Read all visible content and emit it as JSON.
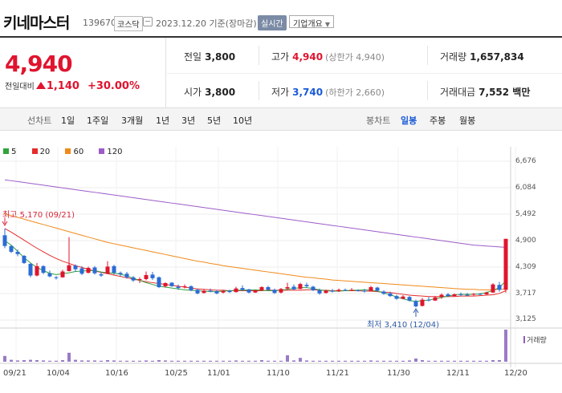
{
  "header": {
    "stock_name": "키네마스터",
    "stock_code": "139670",
    "market": "코스닥",
    "date": "2023.12.20 기준(장마감)",
    "realtime_label": "실시간",
    "company_label": "기업개요"
  },
  "price": {
    "current": "4,940",
    "change_label": "전일대비",
    "change_amount": "1,140",
    "change_pct": "+30.00%",
    "accent_color": "#e0142e",
    "direction": "up"
  },
  "stats": {
    "prev_close_label": "전일",
    "prev_close": "3,800",
    "high_label": "고가",
    "high": "4,940",
    "upper_limit": "(상한가 4,940)",
    "volume_label": "거래량",
    "volume": "1,657,834",
    "open_label": "시가",
    "open": "3,800",
    "low_label": "저가",
    "low": "3,740",
    "lower_limit": "(하한가 2,660)",
    "trade_value_label": "거래대금",
    "trade_value": "7,552 백만"
  },
  "period": {
    "title": "선차트",
    "items": [
      "1일",
      "1주일",
      "3개월",
      "1년",
      "3년",
      "5년",
      "10년"
    ],
    "candle_title": "봉차트",
    "candle_items": [
      "일봉",
      "주봉",
      "월봉"
    ],
    "candle_active": "일봉"
  },
  "legend": [
    {
      "label": "5",
      "color": "#2fa43a"
    },
    {
      "label": "20",
      "color": "#e52b2b"
    },
    {
      "label": "60",
      "color": "#f08a1a"
    },
    {
      "label": "120",
      "color": "#9c5cc9"
    }
  ],
  "annotations": {
    "high": "최고 5,170 (09/21)",
    "low": "최저 3,410 (12/04)"
  },
  "volume_label": "거래량",
  "chart_data": {
    "type": "candlestick",
    "y_ticks": [
      "6,676",
      "6,084",
      "5,492",
      "4,900",
      "4,309",
      "3,717",
      "3,125"
    ],
    "ylim": [
      3125,
      6676
    ],
    "x_ticks": [
      "09/21",
      "10/04",
      "10/16",
      "10/25",
      "11/01",
      "11/10",
      "11/21",
      "11/30",
      "12/11",
      "12/20"
    ],
    "up_color": "#e0142e",
    "down_color": "#2a6bd6",
    "candles": [
      [
        5020,
        5170,
        4730,
        4780
      ],
      [
        4780,
        4800,
        4620,
        4650
      ],
      [
        4650,
        4700,
        4550,
        4600
      ],
      [
        4560,
        4580,
        4380,
        4400
      ],
      [
        4380,
        4400,
        4080,
        4120
      ],
      [
        4120,
        4400,
        4100,
        4330
      ],
      [
        4330,
        4350,
        4150,
        4180
      ],
      [
        4170,
        4230,
        4080,
        4100
      ],
      [
        4080,
        4110,
        4030,
        4070
      ],
      [
        4080,
        4250,
        4070,
        4210
      ],
      [
        4220,
        4980,
        4210,
        4350
      ],
      [
        4340,
        4370,
        4200,
        4260
      ],
      [
        4280,
        4330,
        4130,
        4160
      ],
      [
        4180,
        4320,
        4170,
        4290
      ],
      [
        4300,
        4330,
        4140,
        4170
      ],
      [
        4150,
        4190,
        4090,
        4120
      ],
      [
        4160,
        4440,
        4150,
        4320
      ],
      [
        4330,
        4360,
        4140,
        4180
      ],
      [
        4180,
        4210,
        4100,
        4150
      ],
      [
        4160,
        4200,
        4050,
        4080
      ],
      [
        4080,
        4110,
        3980,
        4010
      ],
      [
        4020,
        4080,
        3950,
        4040
      ],
      [
        4040,
        4210,
        4010,
        4130
      ],
      [
        4140,
        4200,
        4020,
        4060
      ],
      [
        4080,
        4100,
        3840,
        3860
      ],
      [
        3880,
        3970,
        3850,
        3950
      ],
      [
        3960,
        3970,
        3870,
        3880
      ],
      [
        3870,
        3920,
        3800,
        3840
      ],
      [
        3860,
        3920,
        3830,
        3880
      ],
      [
        3880,
        3900,
        3770,
        3790
      ],
      [
        3800,
        3830,
        3700,
        3720
      ],
      [
        3730,
        3810,
        3720,
        3780
      ],
      [
        3780,
        3830,
        3750,
        3760
      ],
      [
        3770,
        3800,
        3700,
        3720
      ],
      [
        3740,
        3800,
        3720,
        3770
      ],
      [
        3780,
        3800,
        3730,
        3750
      ],
      [
        3750,
        3870,
        3740,
        3830
      ],
      [
        3840,
        3900,
        3780,
        3800
      ],
      [
        3810,
        3820,
        3720,
        3740
      ],
      [
        3740,
        3800,
        3730,
        3790
      ],
      [
        3790,
        3880,
        3780,
        3860
      ],
      [
        3860,
        3890,
        3780,
        3800
      ],
      [
        3800,
        3830,
        3710,
        3730
      ],
      [
        3740,
        3840,
        3720,
        3820
      ],
      [
        3830,
        3960,
        3800,
        3860
      ],
      [
        3870,
        3920,
        3800,
        3810
      ],
      [
        3820,
        3960,
        3810,
        3930
      ],
      [
        3910,
        3960,
        3840,
        3880
      ],
      [
        3870,
        3890,
        3770,
        3790
      ],
      [
        3790,
        3830,
        3690,
        3720
      ],
      [
        3730,
        3800,
        3720,
        3780
      ],
      [
        3780,
        3820,
        3740,
        3760
      ],
      [
        3770,
        3830,
        3750,
        3800
      ],
      [
        3800,
        3830,
        3770,
        3790
      ],
      [
        3800,
        3840,
        3780,
        3800
      ],
      [
        3790,
        3810,
        3760,
        3780
      ],
      [
        3780,
        3820,
        3740,
        3760
      ],
      [
        3770,
        3890,
        3760,
        3860
      ],
      [
        3850,
        3870,
        3760,
        3780
      ],
      [
        3760,
        3790,
        3690,
        3710
      ],
      [
        3720,
        3760,
        3640,
        3660
      ],
      [
        3660,
        3690,
        3580,
        3600
      ],
      [
        3600,
        3680,
        3590,
        3650
      ],
      [
        3640,
        3660,
        3540,
        3560
      ],
      [
        3550,
        3580,
        3410,
        3430
      ],
      [
        3440,
        3620,
        3430,
        3580
      ],
      [
        3580,
        3640,
        3540,
        3560
      ],
      [
        3560,
        3660,
        3550,
        3630
      ],
      [
        3640,
        3720,
        3600,
        3690
      ],
      [
        3700,
        3730,
        3640,
        3660
      ],
      [
        3660,
        3720,
        3650,
        3700
      ],
      [
        3700,
        3740,
        3660,
        3690
      ],
      [
        3690,
        3730,
        3660,
        3680
      ],
      [
        3690,
        3730,
        3670,
        3710
      ],
      [
        3710,
        3730,
        3680,
        3700
      ],
      [
        3700,
        3760,
        3690,
        3740
      ],
      [
        3740,
        3950,
        3730,
        3920
      ],
      [
        3910,
        3980,
        3760,
        3800
      ],
      [
        3800,
        4940,
        3740,
        4940
      ]
    ],
    "ma5": [
      4900,
      4800,
      4660,
      4520,
      4400,
      4300,
      4230,
      4170,
      4140,
      4160,
      4180,
      4210,
      4220,
      4230,
      4230,
      4200,
      4180,
      4170,
      4150,
      4110,
      4060,
      4010,
      3960,
      3920,
      3880,
      3860,
      3840,
      3820,
      3800,
      3790,
      3780,
      3770,
      3760,
      3760,
      3770,
      3780,
      3790,
      3790,
      3800,
      3800,
      3790,
      3780,
      3780,
      3790,
      3810,
      3830,
      3850,
      3850,
      3830,
      3800,
      3780,
      3770,
      3770,
      3780,
      3790,
      3790,
      3800,
      3790,
      3770,
      3730,
      3690,
      3640,
      3600,
      3560,
      3540,
      3560,
      3570,
      3600,
      3630,
      3660,
      3690,
      3700,
      3700,
      3700,
      3710,
      3740,
      3790,
      3850,
      4000
    ],
    "ma20": [
      5170,
      5090,
      5000,
      4910,
      4820,
      4730,
      4650,
      4570,
      4500,
      4440,
      4390,
      4340,
      4300,
      4260,
      4220,
      4190,
      4160,
      4130,
      4100,
      4070,
      4040,
      4010,
      3980,
      3960,
      3940,
      3920,
      3900,
      3880,
      3860,
      3840,
      3820,
      3810,
      3800,
      3790,
      3790,
      3780,
      3780,
      3780,
      3780,
      3780,
      3780,
      3790,
      3790,
      3790,
      3790,
      3790,
      3790,
      3800,
      3800,
      3790,
      3790,
      3780,
      3780,
      3780,
      3780,
      3780,
      3770,
      3770,
      3760,
      3750,
      3740,
      3720,
      3700,
      3680,
      3670,
      3660,
      3650,
      3650,
      3650,
      3650,
      3650,
      3660,
      3660,
      3660,
      3670,
      3680,
      3690,
      3720,
      3780
    ],
    "ma60": [
      5500,
      5460,
      5420,
      5380,
      5340,
      5300,
      5260,
      5220,
      5180,
      5140,
      5100,
      5060,
      5020,
      4980,
      4940,
      4900,
      4860,
      4830,
      4800,
      4770,
      4740,
      4710,
      4680,
      4650,
      4620,
      4590,
      4560,
      4530,
      4500,
      4470,
      4440,
      4420,
      4390,
      4370,
      4340,
      4320,
      4300,
      4280,
      4260,
      4240,
      4220,
      4200,
      4180,
      4160,
      4140,
      4120,
      4100,
      4080,
      4070,
      4050,
      4040,
      4020,
      4010,
      4000,
      3990,
      3980,
      3970,
      3960,
      3950,
      3940,
      3930,
      3920,
      3910,
      3900,
      3890,
      3880,
      3870,
      3860,
      3850,
      3840,
      3830,
      3820,
      3810,
      3810,
      3800,
      3800,
      3800,
      3810,
      3820
    ],
    "ma120": [
      6260,
      6240,
      6220,
      6200,
      6180,
      6160,
      6140,
      6120,
      6100,
      6080,
      6060,
      6040,
      6020,
      6000,
      5980,
      5960,
      5940,
      5920,
      5900,
      5880,
      5860,
      5840,
      5820,
      5800,
      5780,
      5760,
      5740,
      5720,
      5700,
      5680,
      5660,
      5640,
      5620,
      5600,
      5580,
      5560,
      5540,
      5520,
      5500,
      5480,
      5460,
      5440,
      5420,
      5400,
      5380,
      5360,
      5340,
      5320,
      5300,
      5280,
      5260,
      5240,
      5220,
      5200,
      5180,
      5160,
      5140,
      5120,
      5100,
      5080,
      5060,
      5040,
      5020,
      5000,
      4980,
      4960,
      4940,
      4920,
      4900,
      4880,
      4860,
      4840,
      4820,
      4800,
      4790,
      4780,
      4770,
      4760,
      4750
    ],
    "volumes": [
      0.18,
      0.06,
      0.04,
      0.05,
      0.06,
      0.05,
      0.04,
      0.03,
      0.03,
      0.05,
      0.28,
      0.06,
      0.04,
      0.04,
      0.04,
      0.03,
      0.05,
      0.04,
      0.03,
      0.03,
      0.03,
      0.03,
      0.04,
      0.03,
      0.05,
      0.04,
      0.03,
      0.03,
      0.03,
      0.03,
      0.03,
      0.03,
      0.03,
      0.03,
      0.03,
      0.03,
      0.04,
      0.03,
      0.03,
      0.03,
      0.05,
      0.03,
      0.03,
      0.03,
      0.2,
      0.04,
      0.12,
      0.04,
      0.03,
      0.03,
      0.03,
      0.03,
      0.03,
      0.03,
      0.03,
      0.03,
      0.03,
      0.04,
      0.03,
      0.03,
      0.03,
      0.03,
      0.03,
      0.04,
      0.1,
      0.05,
      0.03,
      0.03,
      0.03,
      0.03,
      0.03,
      0.03,
      0.03,
      0.03,
      0.03,
      0.03,
      0.05,
      0.05,
      1.0
    ]
  }
}
